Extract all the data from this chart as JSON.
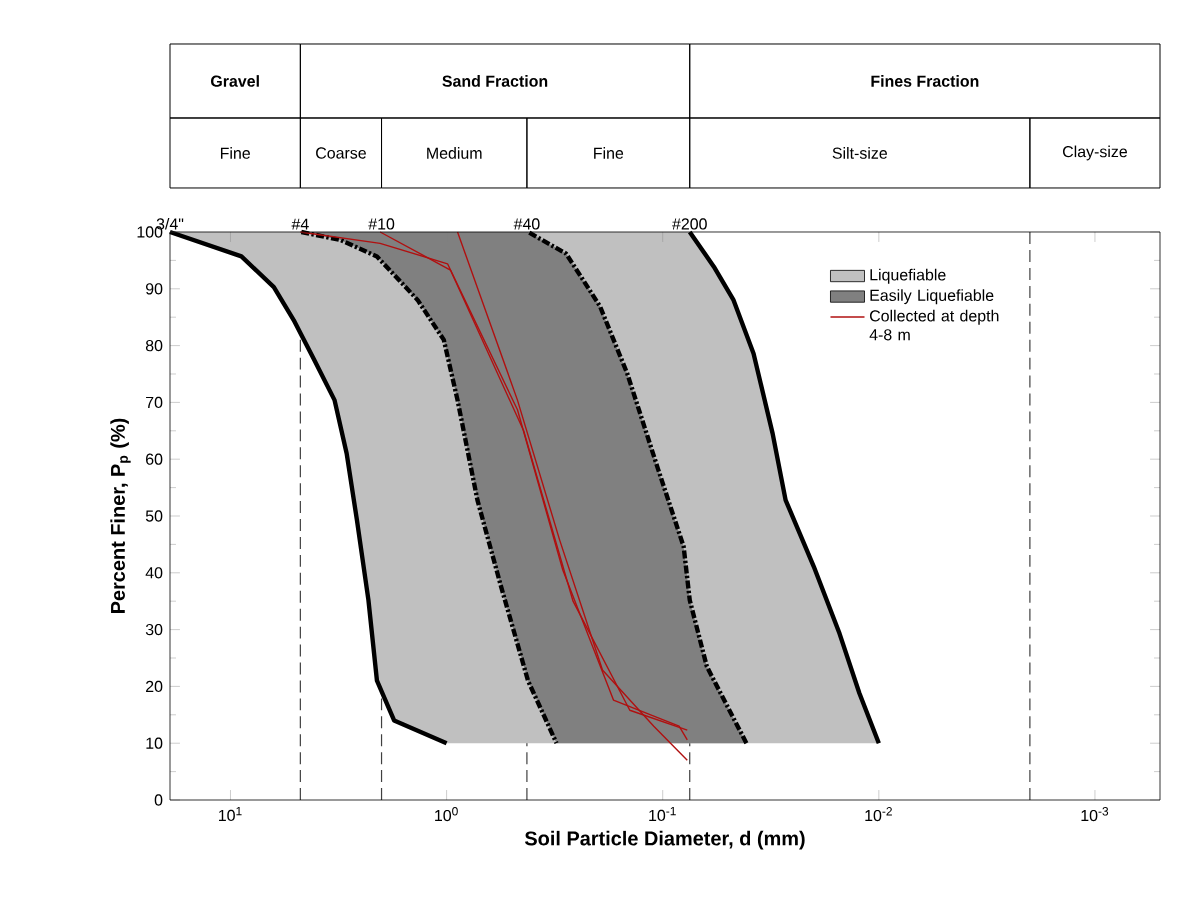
{
  "chart_data": {
    "type": "line",
    "xlabel": "Soil Particle Diameter, d (mm)",
    "ylabel": "Percent Finer, P$_{p}$ (%)",
    "log": "x",
    "xlim": [
      19.05,
      0.0005
    ],
    "ylim": [
      0,
      100
    ],
    "xticks": [
      {
        "value": 10,
        "label": "10$^{1}$"
      },
      {
        "value": 1,
        "label": "10$^{0}$"
      },
      {
        "value": 0.1,
        "label": "10$^{-1}$"
      },
      {
        "value": 0.01,
        "label": "10$^{-2}$"
      },
      {
        "value": 0.001,
        "label": "10$^{-3}$"
      }
    ],
    "yticks": [
      0,
      10,
      20,
      30,
      40,
      50,
      60,
      70,
      80,
      90,
      100
    ],
    "legend": "top right",
    "marker": "none",
    "grid": false,
    "series": [
      {
        "name": "Liquefiable",
        "type": "area",
        "color": "#c0c0c0",
        "line_style": "solid",
        "x": [
          19.05,
          8.9,
          6.3,
          5.1,
          4.1,
          3.3,
          2.9,
          2.6,
          2.3,
          2.1,
          1.75,
          1.0,
          0.01,
          0.0123,
          0.0152,
          0.02,
          0.027,
          0.031,
          0.038,
          0.047,
          0.058,
          0.075
        ],
        "values": [
          100,
          95.7,
          90.3,
          84.5,
          77.5,
          70.4,
          61,
          49.3,
          35.2,
          21,
          14,
          10,
          10,
          18.8,
          29.3,
          41.1,
          52.8,
          64.5,
          78.6,
          88,
          93.9,
          100
        ]
      },
      {
        "name": "Easily Liquefiable",
        "type": "area",
        "color": "#808080",
        "line_style": "dashed",
        "x": [
          4.7,
          3.1,
          2.1,
          1.36,
          1.03,
          0.89,
          0.72,
          0.56,
          0.42,
          0.31,
          0.041,
          0.0625,
          0.075,
          0.08,
          0.106,
          0.146,
          0.195,
          0.28,
          0.42
        ],
        "values": [
          100,
          98.6,
          95.7,
          88,
          81,
          70.4,
          52.8,
          37.6,
          21,
          10,
          10,
          23.5,
          35.2,
          44.6,
          58.7,
          75.1,
          86.9,
          96.2,
          100
        ]
      },
      {
        "name": "Collected at depth 4-8 m",
        "color": "#b01010",
        "line_style": "solid",
        "x": [
          4.75,
          2.03,
          0.99,
          0.47,
          0.29,
          0.169,
          0.084,
          0.077
        ],
        "values": [
          100,
          98,
          94.4,
          68.7,
          40.5,
          17.6,
          13,
          10.6
        ]
      },
      {
        "color": "#b01010",
        "line_style": "solid",
        "x": [
          2.03,
          0.96,
          0.44,
          0.26,
          0.142,
          0.077
        ],
        "values": [
          100,
          93.3,
          65,
          35,
          15.8,
          12.3
        ]
      },
      {
        "color": "#b01010",
        "line_style": "solid",
        "x": [
          0.89,
          0.47,
          0.3,
          0.19,
          0.11,
          0.077
        ],
        "values": [
          100,
          70.4,
          45.8,
          22.9,
          13,
          7
        ]
      }
    ],
    "ref_lines": [
      {
        "axis": "x",
        "value": 4.75
      },
      {
        "axis": "x",
        "value": 2.0
      },
      {
        "axis": "x",
        "value": 0.425
      },
      {
        "axis": "x",
        "value": 0.075
      },
      {
        "axis": "x",
        "value": 0.002
      }
    ],
    "annotations": [
      "Gravel",
      "Sand Fraction",
      "Fines Fraction",
      "Fine",
      "Coarse",
      "Medium",
      "Fine",
      "Silt-size",
      "Clay-size",
      {
        "text": "3/4\"",
        "x": 19.05,
        "y": 100
      },
      {
        "text": "#4",
        "x": 4.75,
        "y": 100
      },
      {
        "text": "#10",
        "x": 2.0,
        "y": 100
      },
      {
        "text": "#40",
        "x": 0.425,
        "y": 100
      },
      {
        "text": "#200",
        "x": 0.075,
        "y": 100
      }
    ]
  }
}
